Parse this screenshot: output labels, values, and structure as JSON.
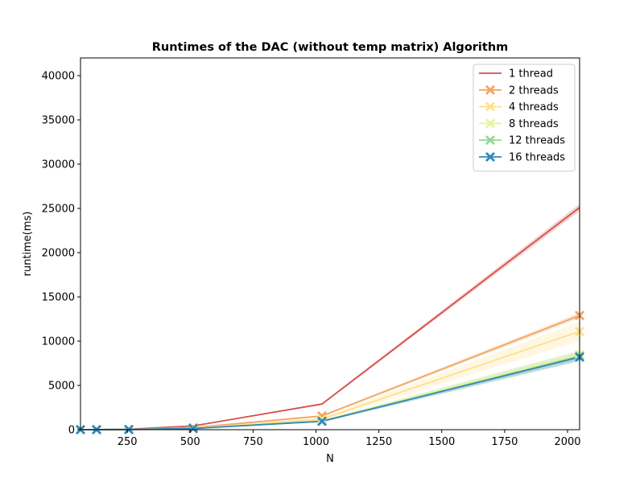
{
  "chart_data": {
    "type": "line",
    "title": "Runtimes of the DAC (without temp matrix) Algorithm",
    "xlabel": "N",
    "ylabel": "runtime(ms)",
    "xlim": [
      64,
      2048
    ],
    "ylim": [
      0,
      42000
    ],
    "xticks": [
      250,
      500,
      750,
      1000,
      1250,
      1500,
      1750,
      2000
    ],
    "yticks": [
      0,
      5000,
      10000,
      15000,
      20000,
      25000,
      30000,
      35000,
      40000
    ],
    "grid": false,
    "legend_position": "top-right",
    "x": [
      64,
      128,
      256,
      512,
      1024,
      2048
    ],
    "series": [
      {
        "name": "1 thread",
        "color": "#d7504a",
        "marker": "none",
        "values": [
          2,
          10,
          60,
          420,
          2900,
          25100
        ],
        "band": [
          [
            1,
            3
          ],
          [
            8,
            12
          ],
          [
            50,
            70
          ],
          [
            380,
            460
          ],
          [
            2800,
            3000
          ],
          [
            24700,
            25500
          ]
        ]
      },
      {
        "name": "2 threads",
        "color": "#f4a460",
        "marker": "x",
        "values": [
          1,
          6,
          35,
          230,
          1550,
          12900
        ],
        "band": [
          [
            0,
            2
          ],
          [
            4,
            8
          ],
          [
            30,
            40
          ],
          [
            200,
            260
          ],
          [
            1450,
            1650
          ],
          [
            12600,
            13200
          ]
        ]
      },
      {
        "name": "4 threads",
        "color": "#fee08b",
        "marker": "x",
        "values": [
          1,
          5,
          25,
          170,
          1200,
          11100
        ],
        "band": [
          [
            0,
            2
          ],
          [
            3,
            7
          ],
          [
            20,
            30
          ],
          [
            150,
            190
          ],
          [
            1050,
            1350
          ],
          [
            10000,
            12200
          ]
        ]
      },
      {
        "name": "8 threads",
        "color": "#e6f598",
        "marker": "x",
        "values": [
          1,
          4,
          20,
          140,
          1000,
          8500
        ],
        "band": [
          [
            0,
            2
          ],
          [
            3,
            6
          ],
          [
            16,
            24
          ],
          [
            120,
            160
          ],
          [
            900,
            1100
          ],
          [
            8000,
            9000
          ]
        ]
      },
      {
        "name": "12 threads",
        "color": "#99d594",
        "marker": "x",
        "values": [
          1,
          4,
          18,
          130,
          950,
          8300
        ],
        "band": [
          [
            0,
            2
          ],
          [
            3,
            6
          ],
          [
            14,
            22
          ],
          [
            110,
            150
          ],
          [
            850,
            1050
          ],
          [
            7700,
            8900
          ]
        ]
      },
      {
        "name": "16 threads",
        "color": "#3288bd",
        "marker": "x",
        "values": [
          1,
          4,
          18,
          130,
          950,
          8200
        ],
        "band": [
          [
            0,
            2
          ],
          [
            3,
            6
          ],
          [
            14,
            22
          ],
          [
            110,
            150
          ],
          [
            850,
            1050
          ],
          [
            7800,
            8600
          ]
        ]
      }
    ]
  }
}
